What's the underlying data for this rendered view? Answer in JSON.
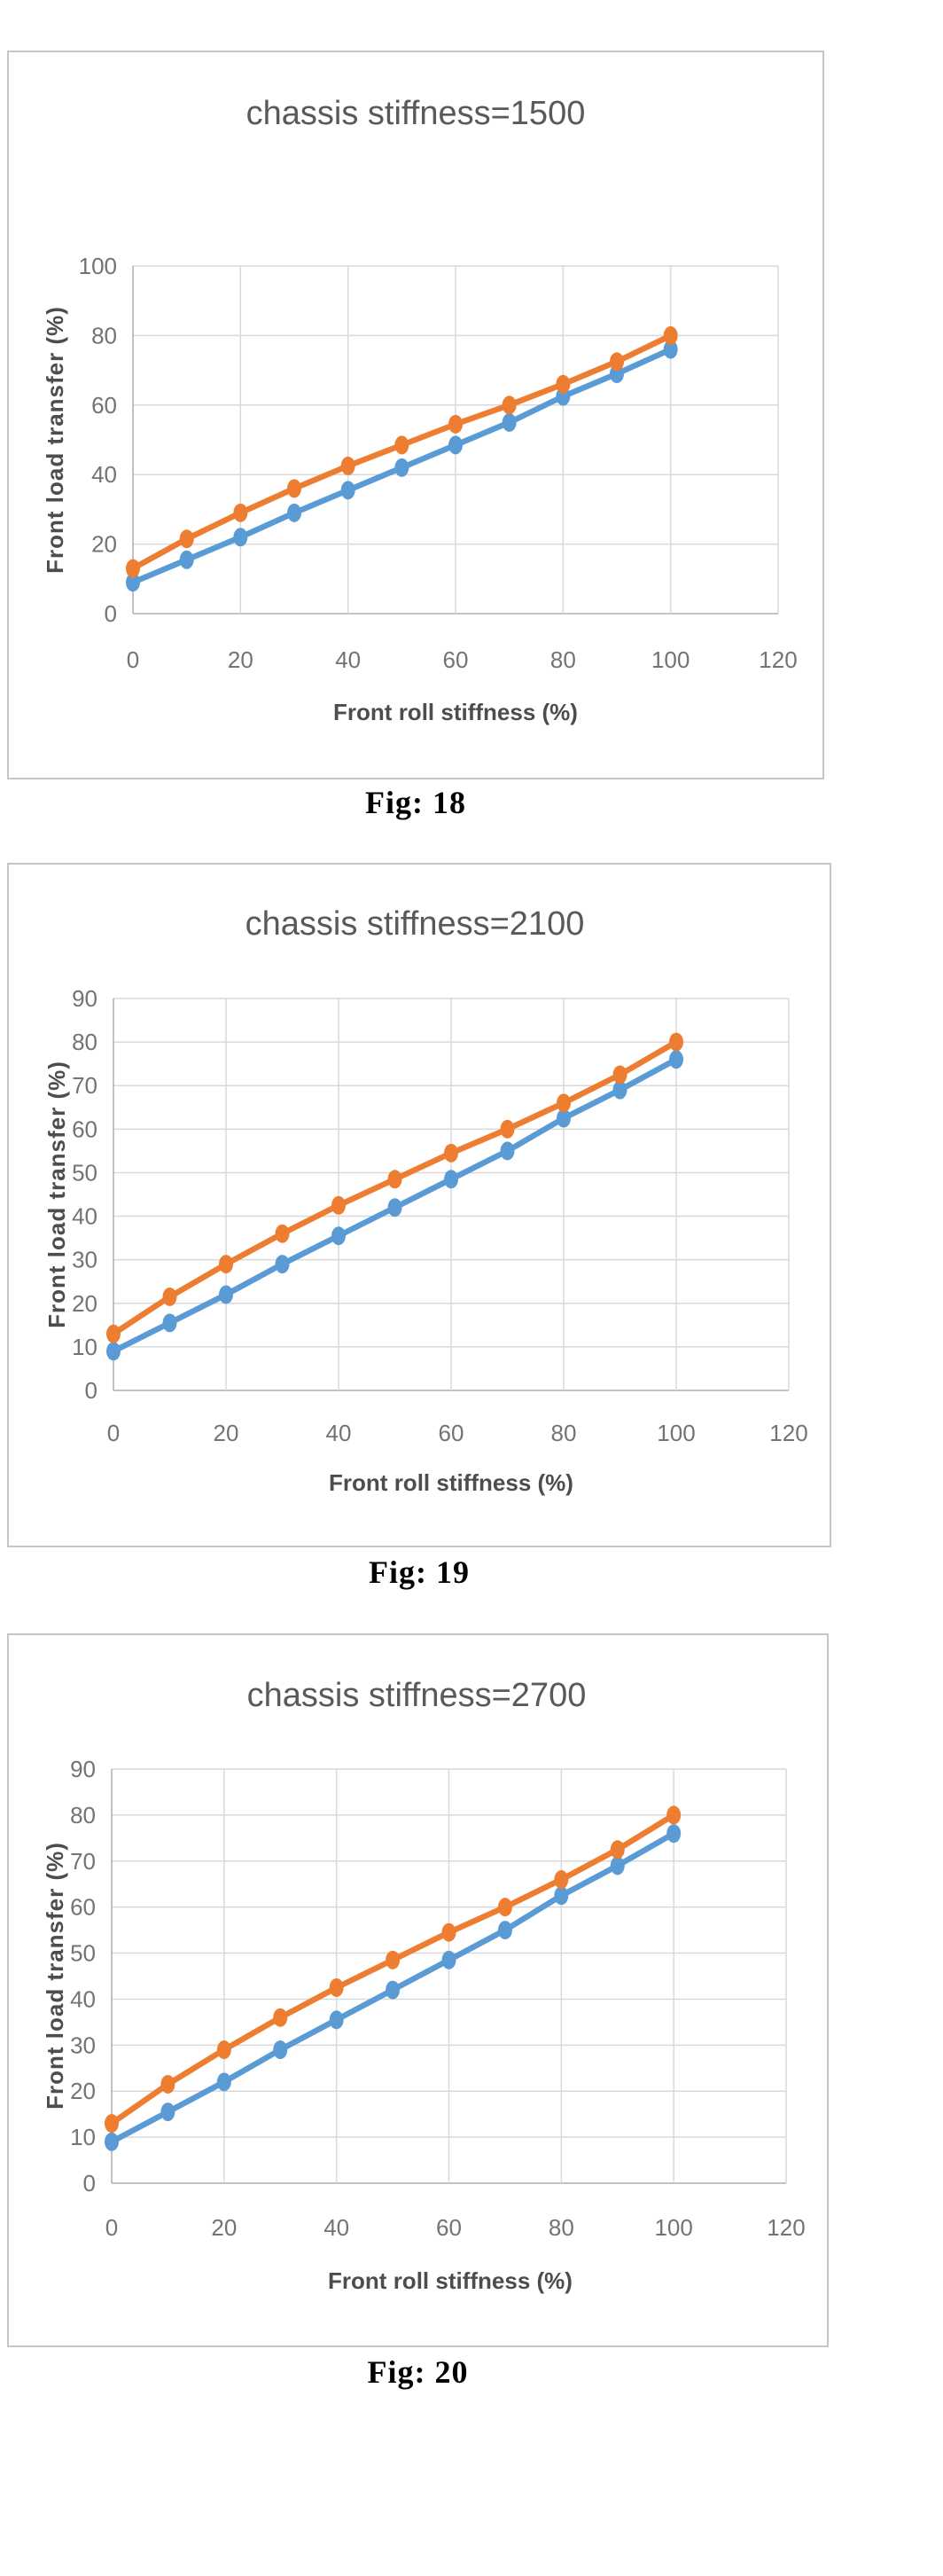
{
  "page": {
    "background": "#ffffff"
  },
  "colors": {
    "series_blue": "#5B9BD5",
    "series_orange": "#ED7D31",
    "gridline": "#D9D9D9",
    "axis_line": "#ADADAD",
    "tick_label": "#737373",
    "chart_title": "#595959",
    "axis_title": "#4D4D4D",
    "chart_border": "#C6C6C6",
    "caption_text": "#000000"
  },
  "chart_data": [
    {
      "type": "line",
      "title": "chassis stiffness=1500",
      "xlabel": "Front roll stiffness (%)",
      "ylabel": "Front load transfer (%)",
      "caption": "Fig: 18",
      "x": [
        0,
        10,
        20,
        30,
        40,
        50,
        60,
        70,
        80,
        90,
        100
      ],
      "series": [
        {
          "name": "blue-series",
          "color": "#5B9BD5",
          "values": [
            9,
            15.5,
            22,
            29,
            35.5,
            42,
            48.5,
            55,
            62.5,
            69,
            76
          ]
        },
        {
          "name": "orange-series",
          "color": "#ED7D31",
          "values": [
            13,
            21.5,
            29,
            36,
            42.5,
            48.5,
            54.5,
            60,
            66,
            72.5,
            80
          ]
        }
      ],
      "xlim": [
        0,
        120
      ],
      "xtick_step": 20,
      "ylim": [
        0,
        100
      ],
      "ytick_step": 20,
      "grid": true,
      "legend": "none"
    },
    {
      "type": "line",
      "title": "chassis stiffness=2100",
      "xlabel": "Front roll stiffness (%)",
      "ylabel": "Front load transfer (%)",
      "caption": "Fig: 19",
      "x": [
        0,
        10,
        20,
        30,
        40,
        50,
        60,
        70,
        80,
        90,
        100
      ],
      "series": [
        {
          "name": "blue-series",
          "color": "#5B9BD5",
          "values": [
            9,
            15.5,
            22,
            29,
            35.5,
            42,
            48.5,
            55,
            62.5,
            69,
            76
          ]
        },
        {
          "name": "orange-series",
          "color": "#ED7D31",
          "values": [
            13,
            21.5,
            29,
            36,
            42.5,
            48.5,
            54.5,
            60,
            66,
            72.5,
            80
          ]
        }
      ],
      "xlim": [
        0,
        120
      ],
      "xtick_step": 20,
      "ylim": [
        0,
        90
      ],
      "ytick_step": 10,
      "grid": true,
      "legend": "none"
    },
    {
      "type": "line",
      "title": "chassis stiffness=2700",
      "xlabel": "Front roll stiffness (%)",
      "ylabel": "Front load transfer (%)",
      "caption": "Fig: 20",
      "x": [
        0,
        10,
        20,
        30,
        40,
        50,
        60,
        70,
        80,
        90,
        100
      ],
      "series": [
        {
          "name": "blue-series",
          "color": "#5B9BD5",
          "values": [
            9,
            15.5,
            22,
            29,
            35.5,
            42,
            48.5,
            55,
            62.5,
            69,
            76
          ]
        },
        {
          "name": "orange-series",
          "color": "#ED7D31",
          "values": [
            13,
            21.5,
            29,
            36,
            42.5,
            48.5,
            54.5,
            60,
            66,
            72.5,
            80
          ]
        }
      ],
      "xlim": [
        0,
        120
      ],
      "xtick_step": 20,
      "ylim": [
        0,
        90
      ],
      "ytick_step": 10,
      "grid": true,
      "legend": "none"
    }
  ]
}
